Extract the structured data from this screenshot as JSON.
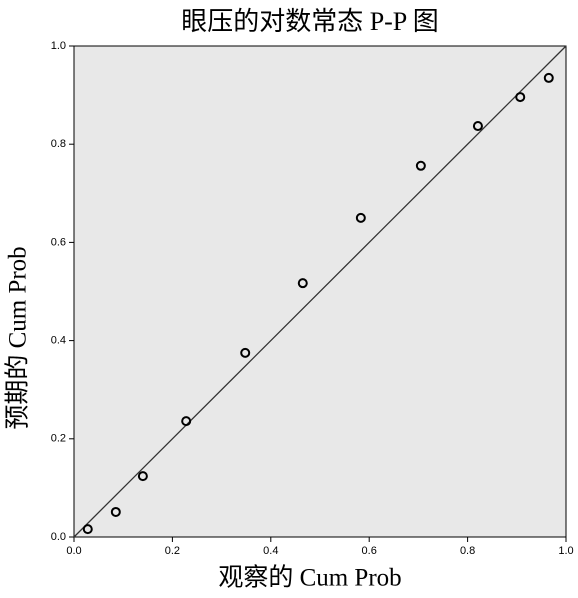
{
  "chart_data": {
    "type": "scatter",
    "title": "眼压的对数常态 P-P 图",
    "x_label": "观察的 Cum Prob",
    "y_label": "预期的 Cum Prob",
    "x": [
      0.028,
      0.085,
      0.14,
      0.228,
      0.348,
      0.465,
      0.583,
      0.705,
      0.821,
      0.907,
      0.965
    ],
    "values": [
      0.016,
      0.051,
      0.124,
      0.236,
      0.375,
      0.517,
      0.65,
      0.756,
      0.837,
      0.896,
      0.935
    ],
    "color": "#000000",
    "background": "#e8e8e8",
    "reference_line": true,
    "xlim": [
      0,
      1
    ],
    "ylim": [
      0,
      1
    ],
    "xticks": [
      {
        "value": 0,
        "label": "0.0"
      },
      0.2,
      0.4,
      0.6,
      0.8,
      {
        "value": 1,
        "label": "1.0"
      }
    ],
    "yticks": [
      {
        "value": 0,
        "label": "0.0"
      },
      0.2,
      0.4,
      0.6,
      0.8,
      {
        "value": 1,
        "label": "1.0"
      }
    ]
  }
}
